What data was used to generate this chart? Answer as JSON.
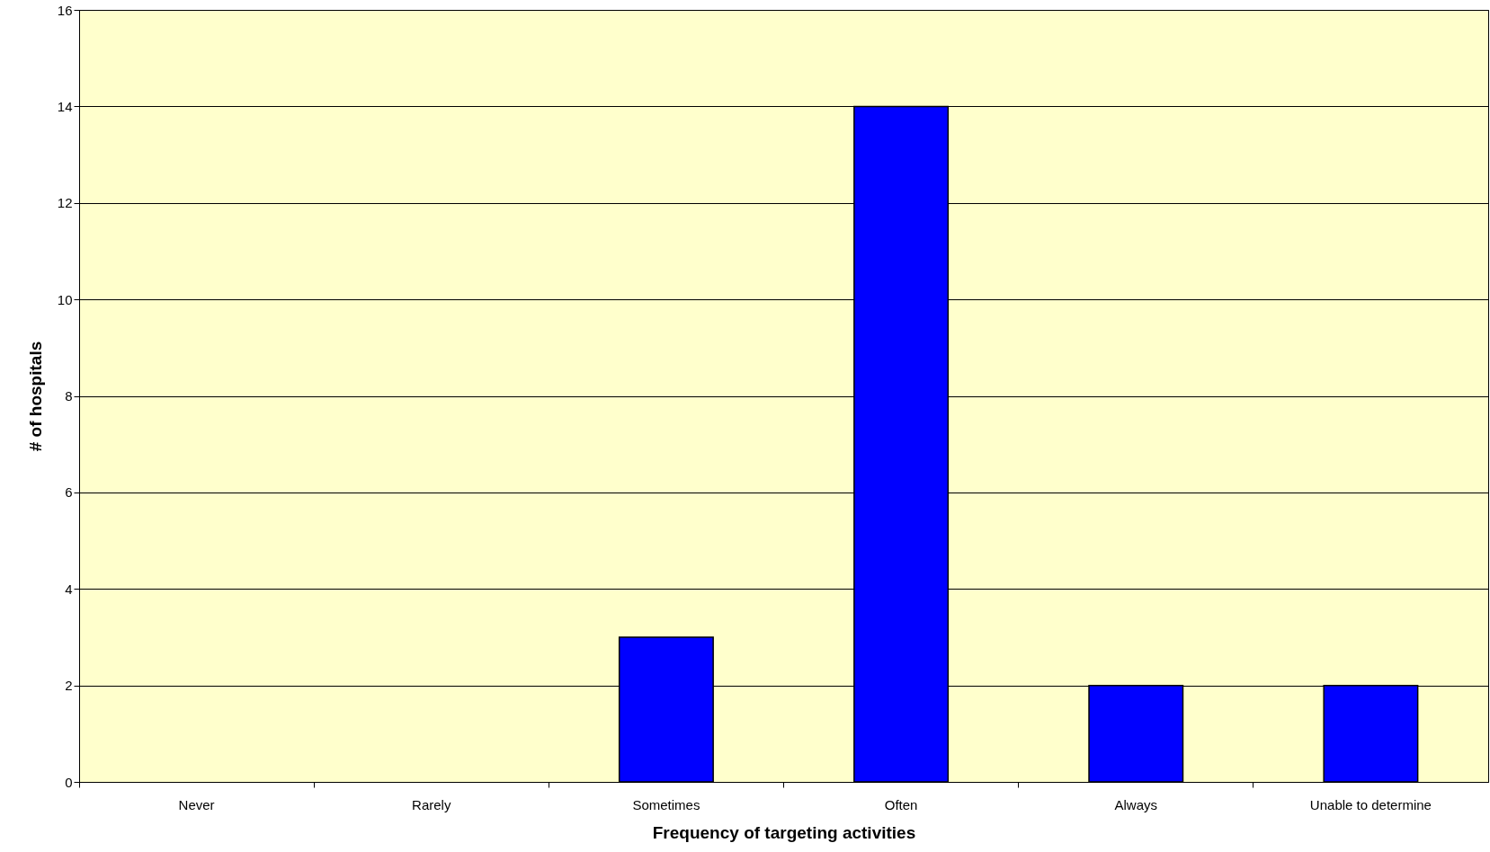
{
  "chart_data": {
    "type": "bar",
    "xlabel": "Frequency of targeting activities",
    "ylabel": "# of hospitals",
    "categories": [
      "Never",
      "Rarely",
      "Sometimes",
      "Often",
      "Always",
      "Unable to determine"
    ],
    "values": [
      0,
      0,
      3,
      14,
      2,
      2
    ],
    "color": "#0000ff",
    "ylim": [
      0,
      16
    ],
    "yticks": [
      0,
      2,
      4,
      6,
      8,
      10,
      12,
      14,
      16
    ],
    "grid": "y"
  }
}
